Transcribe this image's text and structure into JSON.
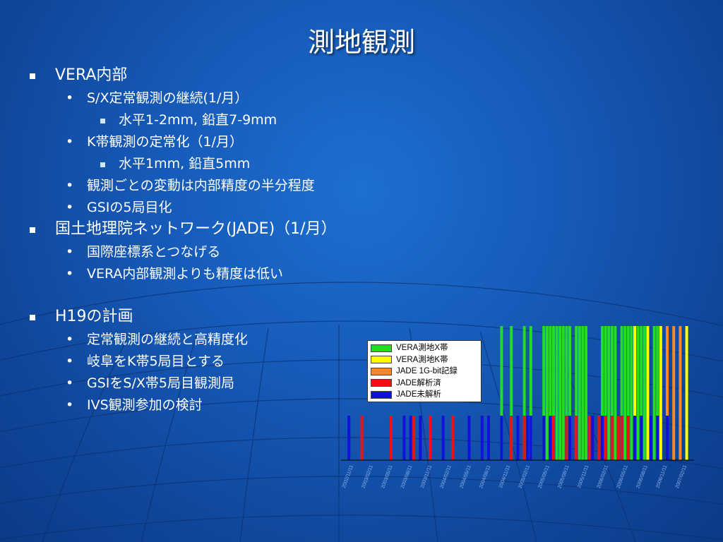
{
  "slide": {
    "title": "測地観測",
    "bullets": [
      {
        "level": 1,
        "text": "VERA内部"
      },
      {
        "level": 2,
        "text": "S/X定常観測の継続(1/月）"
      },
      {
        "level": 3,
        "text": "水平1-2mm, 鉛直7-9mm"
      },
      {
        "level": 2,
        "text": "K帯観測の定常化（1/月）"
      },
      {
        "level": 3,
        "text": "水平1mm, 鉛直5mm"
      },
      {
        "level": 2,
        "text": "観測ごとの変動は内部精度の半分程度"
      },
      {
        "level": 2,
        "text": "GSIの5局目化"
      },
      {
        "level": 1,
        "text": "国土地理院ネットワーク(JADE)（1/月）"
      },
      {
        "level": 2,
        "text": "国際座標系とつなげる"
      },
      {
        "level": 2,
        "text": "VERA内部観測よりも精度は低い"
      },
      {
        "level": 1,
        "text": "H19の計画"
      },
      {
        "level": 2,
        "text": "定常観測の継続と高精度化"
      },
      {
        "level": 2,
        "text": "岐阜をK帯5局目とする"
      },
      {
        "level": 2,
        "text": "GSIをS/X帯5局目観測局"
      },
      {
        "level": 2,
        "text": "IVS観測参加の検討"
      }
    ]
  },
  "legend": [
    {
      "label": "VERA測地X帯",
      "color": "#22dd22"
    },
    {
      "label": "VERA測地K帯",
      "color": "#ffff00"
    },
    {
      "label": "JADE 1G-bit記録",
      "color": "#ff8822"
    },
    {
      "label": "JADE解析済",
      "color": "#ee1111"
    },
    {
      "label": "JADE未解析",
      "color": "#1111dd"
    }
  ],
  "chart_data": {
    "type": "bar",
    "x_tick_labels": [
      "2002/11/11",
      "2003/02/11",
      "2003/05/11",
      "2003/08/11",
      "2003/11/11",
      "2004/02/11",
      "2004/05/11",
      "2004/08/11",
      "2004/11/11",
      "2005/02/11",
      "2005/05/11",
      "2005/08/11",
      "2005/11/11",
      "2006/02/11",
      "2006/05/11",
      "2006/08/11",
      "2006/11/11",
      "2007/02/11"
    ],
    "series": [
      {
        "name": "VERA測地X帯",
        "color": "#22dd22",
        "tall": true,
        "x": [
          0.49,
          0.52,
          0.56,
          0.58,
          0.62,
          0.63,
          0.64,
          0.65,
          0.66,
          0.67,
          0.68,
          0.69,
          0.7,
          0.72,
          0.73,
          0.74,
          0.75,
          0.8,
          0.81,
          0.82,
          0.83,
          0.84,
          0.86,
          0.87,
          0.88,
          0.89,
          0.91,
          0.92,
          0.93,
          0.96,
          0.97
        ]
      },
      {
        "name": "VERA測地K帯",
        "color": "#ffff00",
        "tall": true,
        "x": [
          0.9,
          0.94,
          0.98,
          1.06
        ]
      },
      {
        "name": "JADE 1G-bit記録",
        "color": "#ff8822",
        "tall": true,
        "x": [
          1.0,
          1.02,
          1.04
        ]
      },
      {
        "name": "JADE解析済",
        "color": "#ee1111",
        "tall": false,
        "x": [
          0.06,
          0.15,
          0.22,
          0.27,
          0.34,
          0.52,
          0.56,
          0.65,
          0.69,
          0.72,
          0.76,
          0.79,
          0.81,
          0.83,
          0.85,
          0.86,
          0.88
        ]
      },
      {
        "name": "JADE未解析",
        "color": "#1111dd",
        "tall": false,
        "x": [
          0.02,
          0.19,
          0.21,
          0.24,
          0.31,
          0.39,
          0.43,
          0.45,
          0.49,
          0.54,
          0.57,
          0.58,
          0.62,
          0.64,
          0.7,
          0.77,
          0.8,
          0.9,
          0.92,
          0.95,
          0.97,
          1.0
        ]
      }
    ]
  }
}
